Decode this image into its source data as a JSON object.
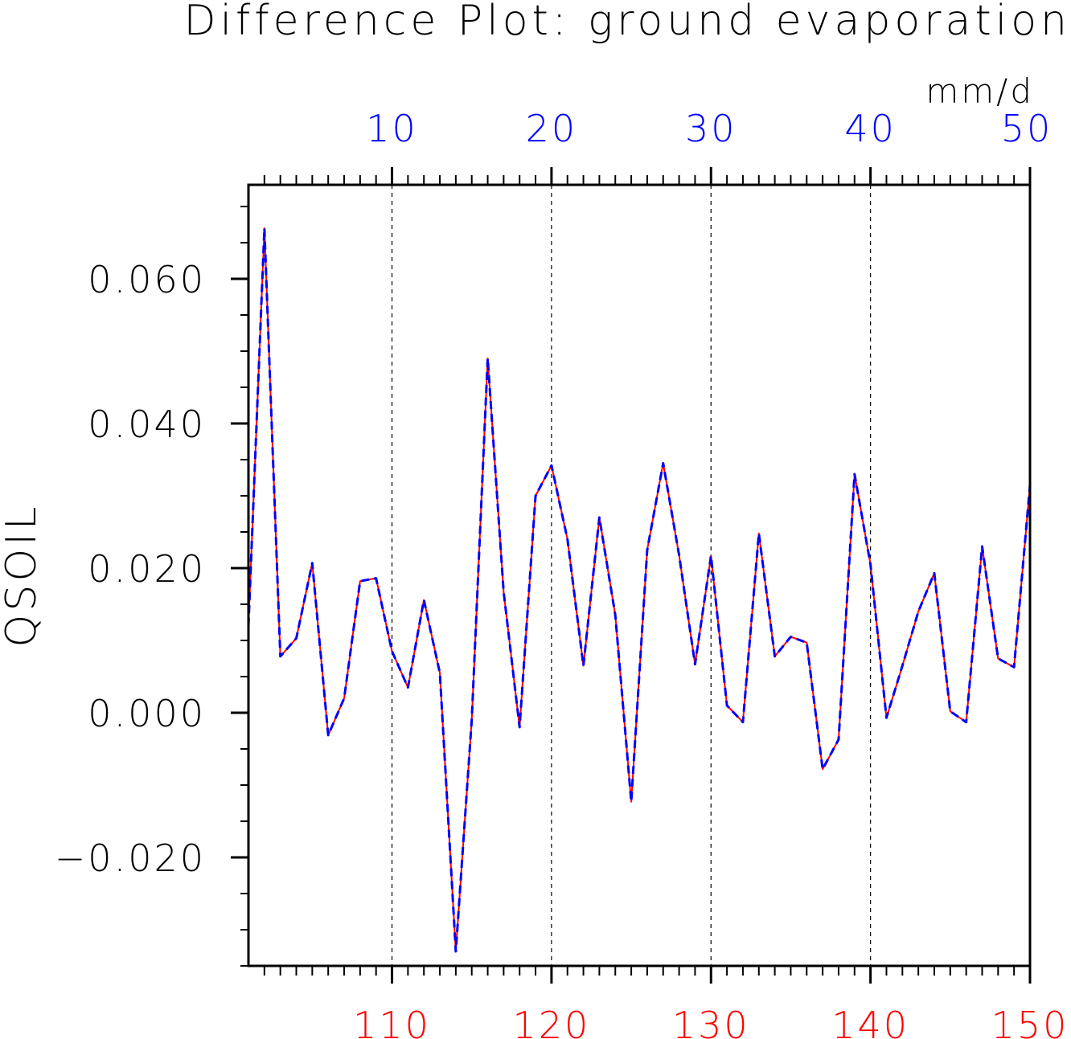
{
  "chart_data": {
    "type": "line",
    "title": "Difference Plot: ground evaporation",
    "units": "mm/d",
    "ylabel": "QSOIL",
    "ylim": [
      -0.035,
      0.073
    ],
    "yticks": [
      0.06,
      0.04,
      0.02,
      0.0,
      -0.02
    ],
    "ytick_labels": [
      "0.060",
      "0.040",
      "0.020",
      "0.000",
      "−0.020"
    ],
    "x_bottom": {
      "range": [
        101,
        150
      ],
      "ticks": [
        110,
        120,
        130,
        140,
        150
      ],
      "tick_labels": [
        "110",
        "120",
        "130",
        "140",
        "150"
      ],
      "color": "#ff0000"
    },
    "x_top": {
      "range": [
        1,
        50
      ],
      "ticks": [
        10,
        20,
        30,
        40,
        50
      ],
      "tick_labels": [
        "10",
        "20",
        "30",
        "40",
        "50"
      ],
      "color": "#0000ff"
    },
    "vertical_grid_dashed_at": [
      10,
      20,
      30,
      40
    ],
    "series": [
      {
        "axis": "bottom",
        "color": "#ff0000",
        "style": "solid",
        "x": [
          101,
          102,
          103,
          104,
          105,
          106,
          107,
          108,
          109,
          110,
          111,
          112,
          113,
          114,
          115,
          116,
          117,
          118,
          119,
          120,
          121,
          122,
          123,
          124,
          125,
          126,
          127,
          128,
          129,
          130,
          131,
          132,
          133,
          134,
          135,
          136,
          137,
          138,
          139,
          140,
          141,
          142,
          143,
          144,
          145,
          146,
          147,
          148,
          149,
          150
        ],
        "values": [
          0.012,
          0.067,
          0.0078,
          0.0103,
          0.0207,
          -0.0031,
          0.002,
          0.0182,
          0.0186,
          0.0085,
          0.0035,
          0.0156,
          0.0055,
          -0.033,
          -0.001,
          0.049,
          0.0167,
          -0.002,
          0.03,
          0.0342,
          0.024,
          0.0065,
          0.027,
          0.0135,
          -0.0123,
          0.0225,
          0.0345,
          0.0218,
          0.0067,
          0.0217,
          0.001,
          -0.0013,
          0.0248,
          0.0078,
          0.0105,
          0.0097,
          -0.0078,
          -0.0037,
          0.033,
          0.0205,
          -0.0007,
          0.0065,
          0.014,
          0.0193,
          0.0002,
          -0.0013,
          0.023,
          0.0075,
          0.0063,
          0.0315
        ]
      },
      {
        "axis": "top",
        "color": "#0000ff",
        "style": "dashed",
        "x": [
          1,
          2,
          3,
          4,
          5,
          6,
          7,
          8,
          9,
          10,
          11,
          12,
          13,
          14,
          15,
          16,
          17,
          18,
          19,
          20,
          21,
          22,
          23,
          24,
          25,
          26,
          27,
          28,
          29,
          30,
          31,
          32,
          33,
          34,
          35,
          36,
          37,
          38,
          39,
          40,
          41,
          42,
          43,
          44,
          45,
          46,
          47,
          48,
          49,
          50
        ],
        "values": [
          0.012,
          0.067,
          0.0078,
          0.0103,
          0.0207,
          -0.0031,
          0.002,
          0.0182,
          0.0186,
          0.0085,
          0.0035,
          0.0156,
          0.0055,
          -0.033,
          -0.001,
          0.049,
          0.0167,
          -0.002,
          0.03,
          0.0342,
          0.024,
          0.0065,
          0.027,
          0.0135,
          -0.0123,
          0.0225,
          0.0345,
          0.0218,
          0.0067,
          0.0217,
          0.001,
          -0.0013,
          0.0248,
          0.0078,
          0.0105,
          0.0097,
          -0.0078,
          -0.0037,
          0.033,
          0.0205,
          -0.0007,
          0.0065,
          0.014,
          0.0193,
          0.0002,
          -0.0013,
          0.023,
          0.0075,
          0.0063,
          0.0315
        ]
      }
    ]
  }
}
